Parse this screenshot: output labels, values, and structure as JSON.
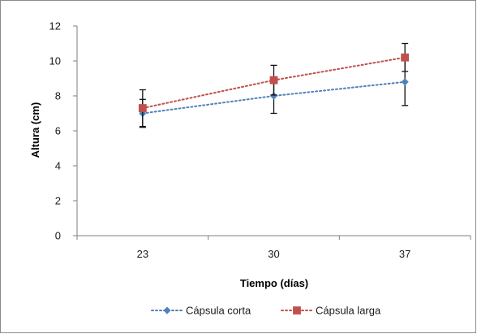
{
  "chart_data": {
    "type": "line",
    "categories": [
      "23",
      "30",
      "37"
    ],
    "xlabel": "Tiempo (días)",
    "ylabel": "Altura (cm)",
    "ylim": [
      0,
      12
    ],
    "yticks": [
      "0",
      "2",
      "4",
      "6",
      "8",
      "10",
      "12"
    ],
    "grid": false,
    "legend_position": "bottom",
    "series": [
      {
        "name": "Cápsula corta",
        "values": [
          7.0,
          8.0,
          8.8
        ],
        "error": [
          0.8,
          1.0,
          1.35
        ],
        "color": "#4f81bd",
        "marker": "diamond",
        "line_style": "dotted"
      },
      {
        "name": "Cápsula larga",
        "values": [
          7.3,
          8.9,
          10.2
        ],
        "error": [
          1.05,
          0.85,
          0.8
        ],
        "color": "#c0504d",
        "marker": "square",
        "line_style": "dotted"
      }
    ]
  }
}
